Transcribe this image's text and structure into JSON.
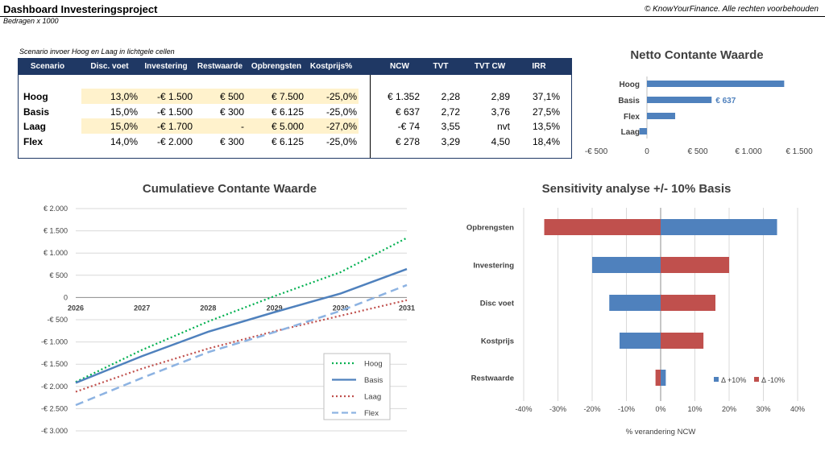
{
  "header": {
    "title": "Dashboard Investeringsproject",
    "units_note": "Bedragen x 1000",
    "copyright": "© KnowYourFinance. Alle rechten voorbehouden"
  },
  "scenario_note": "Scenario invoer Hoog en Laag in lichtgele cellen",
  "table": {
    "columns": [
      "Scenario",
      "Disc. voet",
      "Investering",
      "Restwaarde",
      "Opbrengsten",
      "Kostprijs%",
      "NCW",
      "TVT",
      "TVT CW",
      "IRR"
    ],
    "rows": [
      {
        "scenario": "Hoog",
        "disc": "13,0%",
        "investering": "-€ 1.500",
        "restwaarde": "€ 500",
        "opbrengsten": "€ 7.500",
        "kostprijs": "-25,0%",
        "ncw": "€ 1.352",
        "tvt": "2,28",
        "tvtcw": "2,89",
        "irr": "37,1%",
        "highlight": true
      },
      {
        "scenario": "Basis",
        "disc": "15,0%",
        "investering": "-€ 1.500",
        "restwaarde": "€ 300",
        "opbrengsten": "€ 6.125",
        "kostprijs": "-25,0%",
        "ncw": "€ 637",
        "tvt": "2,72",
        "tvtcw": "3,76",
        "irr": "27,5%",
        "highlight": false
      },
      {
        "scenario": "Laag",
        "disc": "15,0%",
        "investering": "-€ 1.700",
        "restwaarde": "-",
        "opbrengsten": "€ 5.000",
        "kostprijs": "-27,0%",
        "ncw": "-€ 74",
        "tvt": "3,55",
        "tvtcw": "nvt",
        "irr": "13,5%",
        "highlight": true
      },
      {
        "scenario": "Flex",
        "disc": "14,0%",
        "investering": "-€ 2.000",
        "restwaarde": "€ 300",
        "opbrengsten": "€ 6.125",
        "kostprijs": "-25,0%",
        "ncw": "€ 278",
        "tvt": "3,29",
        "tvtcw": "4,50",
        "irr": "18,4%",
        "highlight": false
      }
    ]
  },
  "colors": {
    "header_bg": "#1f3864",
    "highlight": "#fff2cc",
    "blue": "#4f81bd",
    "red": "#c0504d",
    "green": "#00b050",
    "light_blue": "#8db3e2",
    "grid": "#d9d9d9"
  },
  "chart_data": [
    {
      "type": "bar",
      "orientation": "horizontal",
      "title": "Netto Contante Waarde",
      "categories": [
        "Hoog",
        "Basis",
        "Flex",
        "Laag"
      ],
      "values": [
        1352,
        637,
        278,
        -74
      ],
      "data_labels": [
        {
          "category": "Basis",
          "text": "€ 637"
        }
      ],
      "xlim": [
        -500,
        1500
      ],
      "xticks": [
        -500,
        0,
        500,
        1000,
        1500
      ],
      "xtick_labels": [
        "-€ 500",
        "0",
        "€ 500",
        "€ 1.000",
        "€ 1.500"
      ],
      "grid": false
    },
    {
      "type": "line",
      "title": "Cumulatieve Contante Waarde",
      "x": [
        2026,
        2027,
        2028,
        2029,
        2030,
        2031
      ],
      "series": [
        {
          "name": "Hoog",
          "style": "dotted",
          "color": "#00b050",
          "values": [
            -1900,
            -1180,
            -540,
            30,
            570,
            1340
          ]
        },
        {
          "name": "Basis",
          "style": "solid",
          "color": "#4f81bd",
          "values": [
            -1920,
            -1320,
            -770,
            -330,
            90,
            640
          ]
        },
        {
          "name": "Laag",
          "style": "dotted",
          "color": "#c0504d",
          "values": [
            -2120,
            -1600,
            -1150,
            -760,
            -410,
            -60
          ]
        },
        {
          "name": "Flex",
          "style": "dashed",
          "color": "#8db3e2",
          "values": [
            -2420,
            -1810,
            -1230,
            -780,
            -300,
            280
          ]
        }
      ],
      "ylim": [
        -3000,
        2000
      ],
      "yticks": [
        -3000,
        -2500,
        -2000,
        -1500,
        -1000,
        -500,
        0,
        500,
        1000,
        1500,
        2000
      ],
      "ytick_labels": [
        "-€ 3.000",
        "-€ 2.500",
        "-€ 2.000",
        "-€ 1.500",
        "-€ 1.000",
        "-€ 500",
        "0",
        "€ 500",
        "€ 1.000",
        "€ 1.500",
        "€ 2.000"
      ],
      "grid": true,
      "legend": "bottom-right"
    },
    {
      "type": "bar",
      "orientation": "horizontal",
      "title": "Sensitivity analyse +/- 10% Basis",
      "categories": [
        "Opbrengsten",
        "Investering",
        "Disc voet",
        "Kostprijs",
        "Restwaarde"
      ],
      "series": [
        {
          "name": "Δ +10%",
          "color": "#4f81bd",
          "values": [
            34,
            -20,
            -15,
            -12,
            1.5
          ]
        },
        {
          "name": "Δ -10%",
          "color": "#c0504d",
          "values": [
            -34,
            20,
            16,
            12.5,
            -1.5
          ]
        }
      ],
      "xlim": [
        -40,
        40
      ],
      "xticks": [
        -40,
        -30,
        -20,
        -10,
        0,
        10,
        20,
        30,
        40
      ],
      "xtick_labels": [
        "-40%",
        "-30%",
        "-20%",
        "-10%",
        "0%",
        "10%",
        "20%",
        "30%",
        "40%"
      ],
      "xlabel": "% verandering NCW",
      "grid": true,
      "legend": "bottom-right"
    }
  ]
}
